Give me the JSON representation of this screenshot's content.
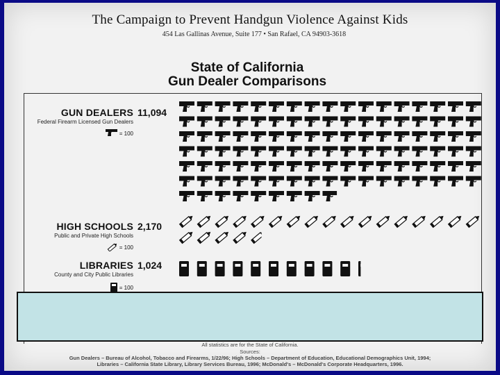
{
  "header": {
    "org_title": "The Campaign to Prevent Handgun Violence Against Kids",
    "org_address": "454 Las Gallinas Avenue, Suite 177 • San Rafael, CA 94903-3618"
  },
  "chart_data": {
    "type": "pictograph",
    "title_line1": "State of California",
    "title_line2": "Gun Dealer Comparisons",
    "unit_value": 100,
    "rows": [
      {
        "name": "GUN DEALERS",
        "subtitle": "Federal Firearm Licensed Gun Dealers",
        "key_label": "= 100",
        "value": 11094,
        "value_label": "11,094",
        "icon": "handgun-icon"
      },
      {
        "name": "HIGH SCHOOLS",
        "subtitle": "Public and Private High Schools",
        "key_label": "= 100",
        "value": 2170,
        "value_label": "2,170",
        "icon": "pencil-icon"
      },
      {
        "name": "LIBRARIES",
        "subtitle": "County and City Public Libraries",
        "key_label": "= 100",
        "value": 1024,
        "value_label": "1,024",
        "icon": "book-icon"
      }
    ]
  },
  "footer": {
    "line1": "All statistics are for the State of California.",
    "line2": "Sources:",
    "line3": "Gun Dealers – Bureau of Alcohol, Tobacco and Firearms, 1/22/96; High Schools – Department of Education, Educational Demographics Unit, 1994;",
    "line4": "Libraries – California State Library, Library Services Bureau, 1996; McDonald's – McDonald's Corporate Headquarters, 1996."
  },
  "colors": {
    "background": "#0a0a86",
    "paper": "#f2f2f2",
    "overlay": "#c2e3e6",
    "ink": "#111111"
  }
}
